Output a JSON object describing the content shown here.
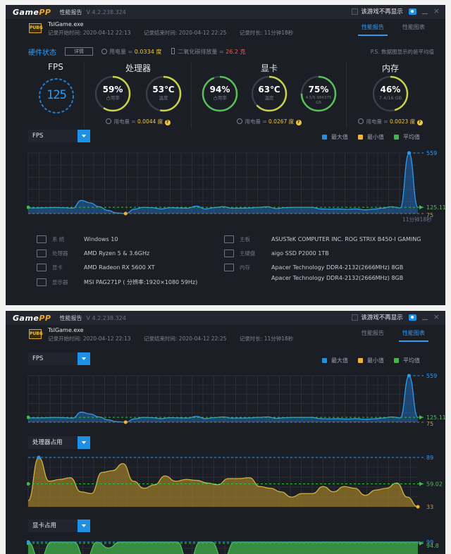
{
  "app": {
    "logo_a": "Game",
    "logo_b": "PP",
    "title": "性能报告",
    "version": "V 4.2.238.324",
    "hide_checkbox_label": "该游戏不再显示",
    "camera_icon": "camera-icon",
    "minimize": "minimize-icon",
    "close": "×"
  },
  "game": {
    "icon_text": "PUBG",
    "name": "TslGame.exe",
    "start": "记录开始时间: 2020-04-12 22:13",
    "end": "记录结束时间: 2020-04-12 22:25",
    "duration": "记录时长: 11分钟18秒"
  },
  "tabs": [
    {
      "label": "性能报告"
    },
    {
      "label": "性能图表"
    }
  ],
  "hardware": {
    "title": "硬件状态",
    "detail_button": "详情",
    "power_label": "用电量 = ",
    "power_value": "0.0334 度",
    "co2_label": "二氧化碳排放量 = ",
    "co2_value": "26.2 克",
    "note": "P.S. 数据图显示的是平均值"
  },
  "gauges": {
    "fps": {
      "title": "FPS",
      "value": "125"
    },
    "cpu": {
      "title": "处理器",
      "usage": {
        "value": "59%",
        "label": "占用率",
        "pct": 59
      },
      "temp": {
        "value": "53℃",
        "label": "温度",
        "pct": 53
      },
      "power_label": "用电量 = ",
      "power_value": "0.0044 度"
    },
    "gpu": {
      "title": "显卡",
      "usage": {
        "value": "94%",
        "label": "占用率",
        "pct": 94
      },
      "temp": {
        "value": "63℃",
        "label": "温度",
        "pct": 63
      },
      "vram": {
        "value": "75%",
        "label": "4.5/5.984375 GB",
        "pct": 75
      },
      "power_label": "用电量 = ",
      "power_value": "0.0267 度"
    },
    "mem": {
      "title": "内存",
      "usage": {
        "value": "46%",
        "label": "7.4/16 GB",
        "pct": 46
      },
      "power_label": "用电量 = ",
      "power_value": "0.0023 度"
    }
  },
  "legend": {
    "max": "最大值",
    "min": "最小值",
    "avg": "平均值"
  },
  "colors": {
    "max": "#1e90e6",
    "min": "#f0b33a",
    "avg": "#3cba4a",
    "accent": "#2f9bf0"
  },
  "system": {
    "os_k": "系  统",
    "os_v": "Windows 10",
    "cpu_k": "处理器",
    "cpu_v": "AMD Ryzen 5 & 3.6GHz",
    "gpu_k": "显卡",
    "gpu_v": "AMD Radeon RX 5600 XT",
    "mon_k": "显示器",
    "mon_v": "MSI PAG271P ( 分辨率:1920×1080 59Hz)",
    "mb_k": "主板",
    "mb_v": "ASUSTeK COMPUTER INC. ROG STRIX B450-I GAMING",
    "disk_k": "主硬盘",
    "disk_v": "aigo SSD P2000 1TB",
    "ram_k": "内存",
    "ram_v1": "Apacer Technology DDR4-2132(2666MHz) 8GB",
    "ram_v2": "Apacer Technology DDR4-2132(2666MHz) 8GB"
  },
  "chart_data": [
    {
      "type": "area",
      "title": "FPS",
      "xlabel": "11分钟18秒",
      "max": 559,
      "min": 75,
      "avg": 125.11,
      "max_label": "559",
      "min_label": "75",
      "avg_label": "125.11",
      "values": [
        120,
        120,
        122,
        124,
        122,
        118,
        180,
        160,
        130,
        100,
        80,
        75,
        110,
        125,
        122,
        112,
        122,
        120,
        118,
        135,
        112,
        122,
        130,
        118,
        118,
        120,
        125,
        130,
        115,
        122,
        125,
        125,
        125,
        112,
        110,
        112,
        108,
        112,
        105,
        110,
        118,
        130,
        120,
        559,
        125
      ]
    },
    {
      "type": "area",
      "title": "处理器占用",
      "max": 89,
      "min": 33,
      "avg": 59.02,
      "max_label": "89",
      "min_label": "33",
      "avg_label": "59.02",
      "values": [
        40,
        89,
        62,
        64,
        66,
        50,
        48,
        72,
        74,
        82,
        62,
        54,
        58,
        68,
        62,
        64,
        63,
        60,
        58,
        65,
        65,
        66,
        56,
        54,
        50,
        44,
        48,
        48,
        56,
        50,
        56,
        54,
        46,
        52,
        54,
        60,
        44,
        33
      ]
    },
    {
      "type": "area",
      "title": "显卡占用",
      "max": 99,
      "min_label": "",
      "avg": 94.8,
      "max_label": "99",
      "avg_label": "94.8",
      "values": [
        99,
        40,
        99,
        99,
        99,
        40,
        99,
        80,
        99,
        99,
        99,
        99,
        99,
        99,
        30,
        99,
        99,
        40,
        99,
        99,
        99,
        99,
        99,
        99,
        99,
        99,
        99,
        99,
        99,
        99,
        99,
        99,
        99,
        99,
        99
      ]
    }
  ]
}
